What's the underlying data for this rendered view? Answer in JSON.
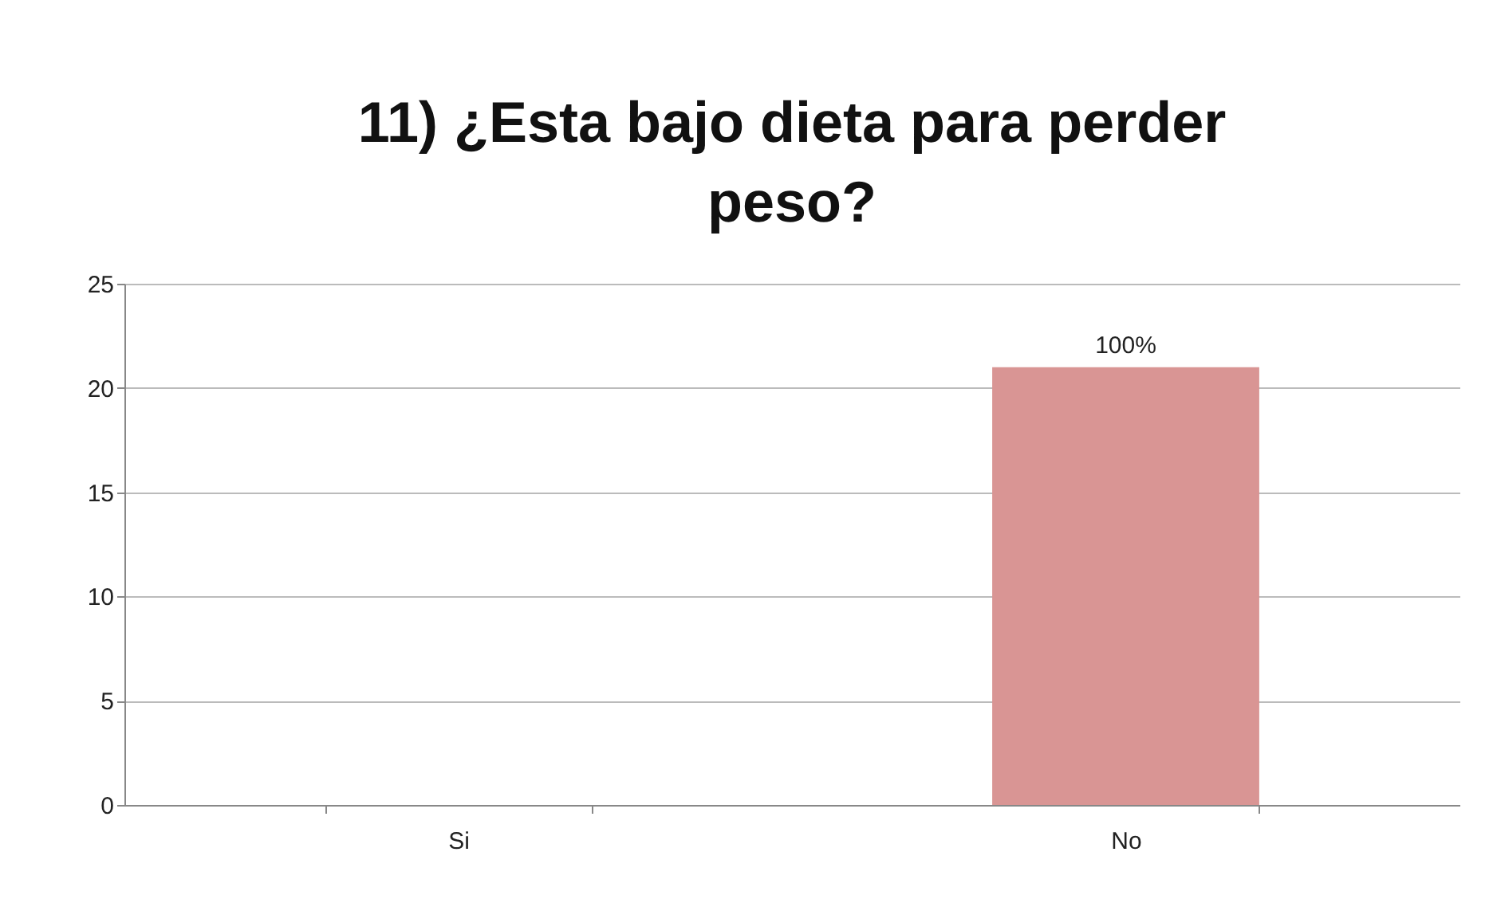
{
  "chart_data": {
    "type": "bar",
    "title": "11) ¿Esta bajo dieta para perder peso?",
    "categories": [
      "Si",
      "No"
    ],
    "values": [
      0,
      21
    ],
    "annotations": [
      {
        "text": "100%",
        "x": "No",
        "y": 21
      }
    ],
    "color": "#d99594",
    "ylim": [
      0,
      25
    ],
    "yticks": [
      0,
      5,
      10,
      15,
      20,
      25
    ],
    "grid": "y"
  }
}
